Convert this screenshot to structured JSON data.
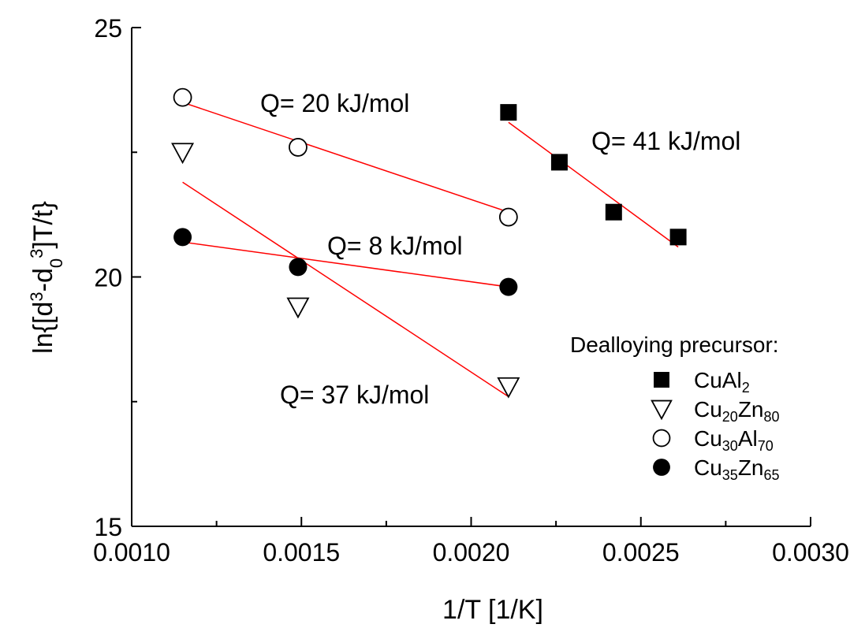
{
  "chart_data": {
    "type": "scatter",
    "xlabel": "1/T [1/K]",
    "ylabel": "ln{[d³-d₀³]T/t}",
    "ylabel_parts": {
      "a": "ln{[d",
      "sup1": "3",
      "b": "-d",
      "sub1": "0",
      "sup2": "3",
      "c": "]T/t}"
    },
    "xlim": [
      0.001,
      0.003
    ],
    "ylim": [
      15,
      25
    ],
    "xticks": [
      0.001,
      0.0015,
      0.002,
      0.0025,
      0.003
    ],
    "xtick_labels": [
      "0.0010",
      "0.0015",
      "0.0020",
      "0.0025",
      "0.0030"
    ],
    "yticks": [
      15,
      20,
      25
    ],
    "ytick_labels": [
      "15",
      "20",
      "25"
    ],
    "grid": false,
    "legend_title": "Dealloying precursor:",
    "legend_position": "bottom-right",
    "series": [
      {
        "name": "CuAl2",
        "label_base": "CuAl",
        "label_sub": "2",
        "label_base2": "",
        "label_sub2": "",
        "marker": "filled-square",
        "x": [
          0.00211,
          0.00226,
          0.00242,
          0.00261
        ],
        "y": [
          23.3,
          22.3,
          21.3,
          20.8
        ],
        "fit": {
          "x": [
            0.00211,
            0.00261
          ],
          "y": [
            23.1,
            20.6
          ]
        },
        "annotation": "Q= 41 kJ/mol"
      },
      {
        "name": "Cu20Zn80",
        "label_base": "Cu",
        "label_sub": "20",
        "label_base2": "Zn",
        "label_sub2": "80",
        "marker": "open-triangle-down",
        "x": [
          0.00115,
          0.00149,
          0.00211
        ],
        "y": [
          22.5,
          19.4,
          17.8
        ],
        "fit": {
          "x": [
            0.00115,
            0.00211
          ],
          "y": [
            21.9,
            17.6
          ]
        },
        "annotation": "Q= 37 kJ/mol"
      },
      {
        "name": "Cu30Al70",
        "label_base": "Cu",
        "label_sub": "30",
        "label_base2": "Al",
        "label_sub2": "70",
        "marker": "open-circle",
        "x": [
          0.00115,
          0.00149,
          0.00211
        ],
        "y": [
          23.6,
          22.6,
          21.2
        ],
        "fit": {
          "x": [
            0.00115,
            0.00211
          ],
          "y": [
            23.5,
            21.3
          ]
        },
        "annotation": "Q= 20 kJ/mol"
      },
      {
        "name": "Cu35Zn65",
        "label_base": "Cu",
        "label_sub": "35",
        "label_base2": "Zn",
        "label_sub2": "65",
        "marker": "filled-circle",
        "x": [
          0.00115,
          0.00149,
          0.00211
        ],
        "y": [
          20.8,
          20.2,
          19.8
        ],
        "fit": {
          "x": [
            0.00115,
            0.00211
          ],
          "y": [
            20.7,
            19.8
          ]
        },
        "annotation": "Q= 8 kJ/mol"
      }
    ],
    "fit_color": "#ff0000",
    "marker_color": "#000000"
  }
}
